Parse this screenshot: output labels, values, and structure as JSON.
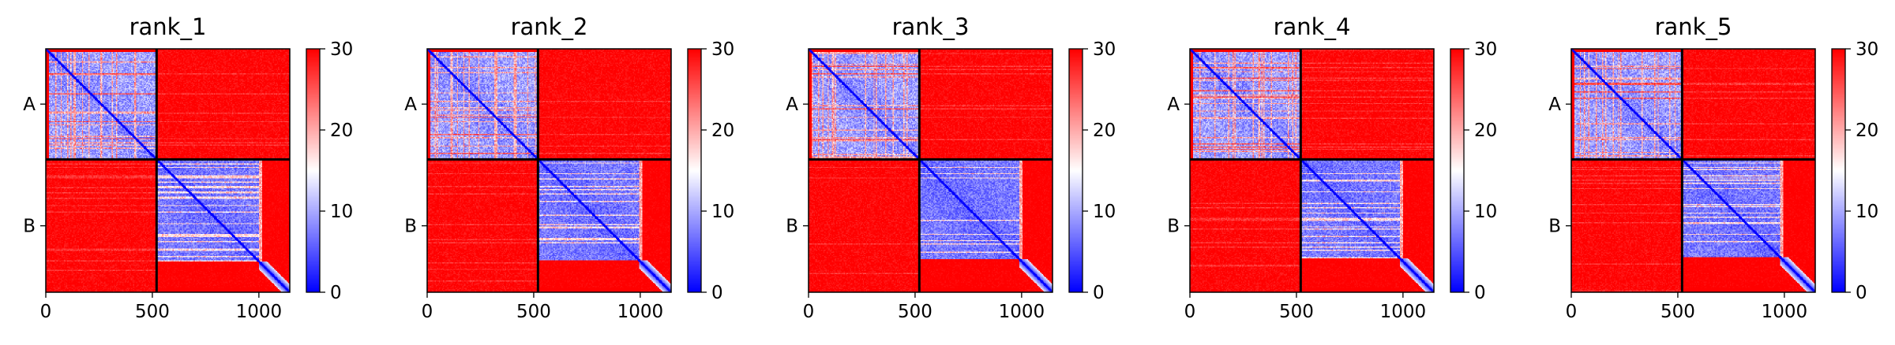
{
  "chart_data": [
    {
      "type": "heatmap",
      "title": "rank_1",
      "variant": 0,
      "n_residues": 1145,
      "chain_break": 520,
      "chains": [
        "A",
        "B"
      ],
      "xticks": [
        0,
        500,
        1000
      ],
      "color_range": [
        0,
        30
      ],
      "colorbar_ticks": [
        0,
        10,
        20,
        30
      ],
      "colormap": [
        "#0000ff",
        "#ffffff",
        "#ff0000"
      ]
    },
    {
      "type": "heatmap",
      "title": "rank_2",
      "variant": 1,
      "n_residues": 1145,
      "chain_break": 520,
      "chains": [
        "A",
        "B"
      ],
      "xticks": [
        0,
        500,
        1000
      ],
      "color_range": [
        0,
        30
      ],
      "colorbar_ticks": [
        0,
        10,
        20,
        30
      ],
      "colormap": [
        "#0000ff",
        "#ffffff",
        "#ff0000"
      ]
    },
    {
      "type": "heatmap",
      "title": "rank_3",
      "variant": 2,
      "n_residues": 1145,
      "chain_break": 520,
      "chains": [
        "A",
        "B"
      ],
      "xticks": [
        0,
        500,
        1000
      ],
      "color_range": [
        0,
        30
      ],
      "colorbar_ticks": [
        0,
        10,
        20,
        30
      ],
      "colormap": [
        "#0000ff",
        "#ffffff",
        "#ff0000"
      ]
    },
    {
      "type": "heatmap",
      "title": "rank_4",
      "variant": 3,
      "n_residues": 1145,
      "chain_break": 520,
      "chains": [
        "A",
        "B"
      ],
      "xticks": [
        0,
        500,
        1000
      ],
      "color_range": [
        0,
        30
      ],
      "colorbar_ticks": [
        0,
        10,
        20,
        30
      ],
      "colormap": [
        "#0000ff",
        "#ffffff",
        "#ff0000"
      ]
    },
    {
      "type": "heatmap",
      "title": "rank_5",
      "variant": 4,
      "n_residues": 1145,
      "chain_break": 520,
      "chains": [
        "A",
        "B"
      ],
      "xticks": [
        0,
        500,
        1000
      ],
      "color_range": [
        0,
        30
      ],
      "colorbar_ticks": [
        0,
        10,
        20,
        30
      ],
      "colormap": [
        "#0000ff",
        "#ffffff",
        "#ff0000"
      ]
    }
  ]
}
